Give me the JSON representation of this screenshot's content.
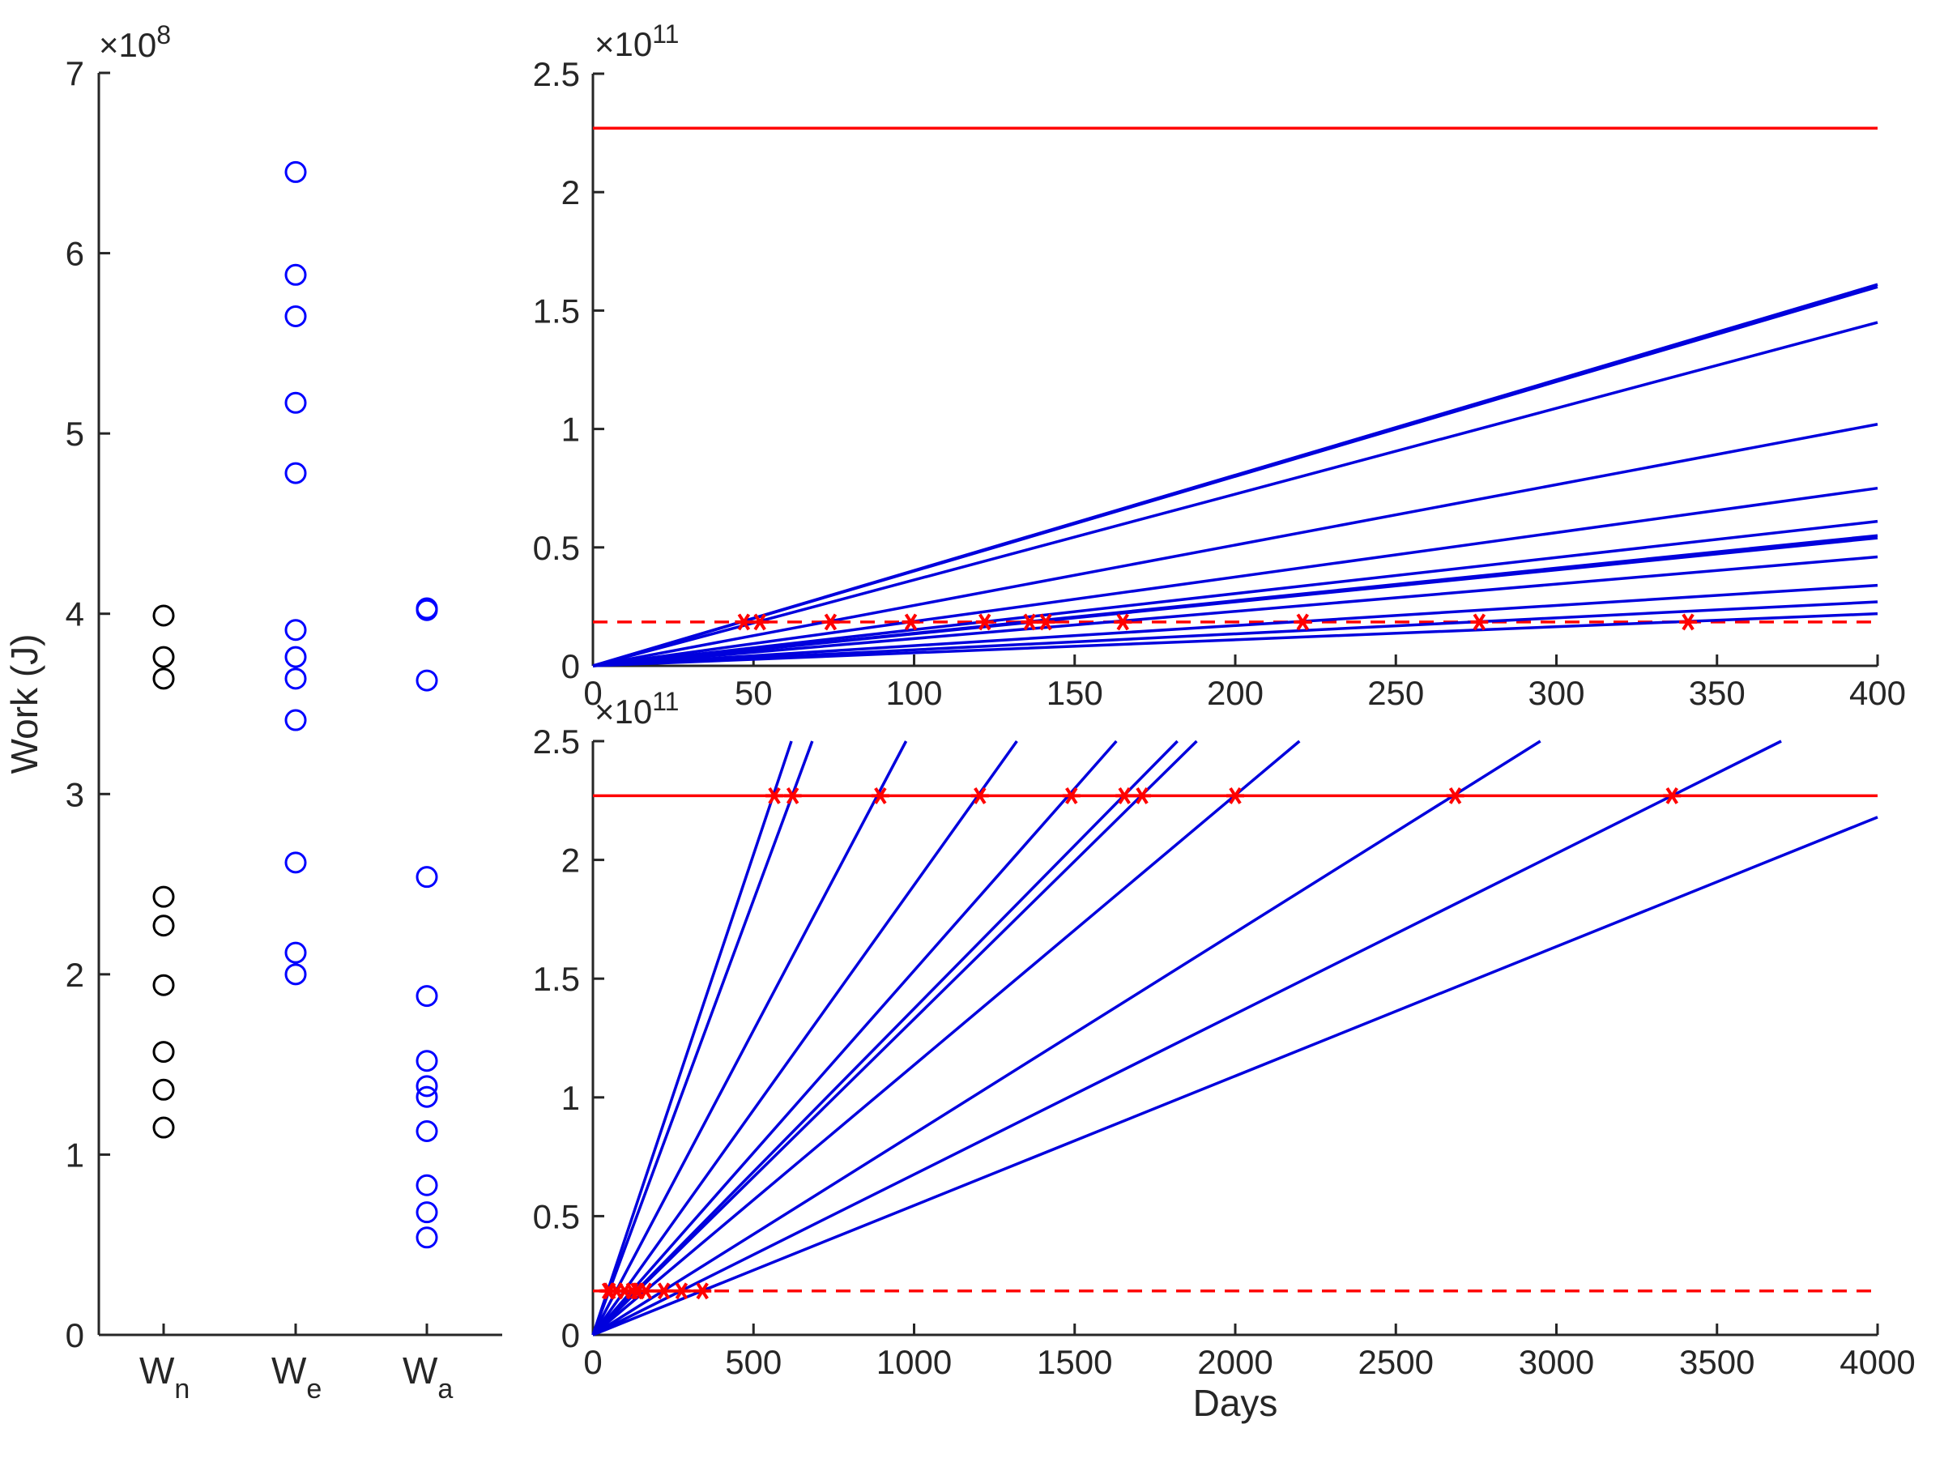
{
  "chart_data": [
    {
      "type": "scatter",
      "ylabel": "Work (J)",
      "ylim": [
        0,
        7
      ],
      "y_exponent_label": "×10",
      "y_exponent_power": "8",
      "yticks": [
        "0",
        "1",
        "2",
        "3",
        "4",
        "5",
        "6",
        "7"
      ],
      "categories": [
        {
          "main": "W",
          "sub": "n"
        },
        {
          "main": "W",
          "sub": "e"
        },
        {
          "main": "W",
          "sub": "a"
        }
      ],
      "series": [
        {
          "name": "W_n",
          "color": "#000000",
          "values": [
            3.99,
            3.76,
            3.64,
            2.43,
            2.27,
            1.94,
            1.57,
            1.36,
            1.15
          ]
        },
        {
          "name": "W_e",
          "color": "#0000ff",
          "values": [
            6.45,
            5.88,
            5.65,
            5.17,
            4.78,
            3.91,
            3.76,
            3.64,
            3.41,
            2.62,
            2.12,
            2.0
          ]
        },
        {
          "name": "W_a",
          "color": "#0000ff",
          "values": [
            4.03,
            4.02,
            3.63,
            2.54,
            1.88,
            1.52,
            1.38,
            1.32,
            1.13,
            0.83,
            0.68,
            0.54
          ]
        }
      ]
    },
    {
      "type": "line",
      "xlim": [
        0,
        400
      ],
      "ylim": [
        0,
        2.5
      ],
      "xticks": [
        "0",
        "50",
        "100",
        "150",
        "200",
        "250",
        "300",
        "350",
        "400"
      ],
      "yticks": [
        "0",
        "0.5",
        "1",
        "1.5",
        "2",
        "2.5"
      ],
      "y_exponent_label": "×10",
      "y_exponent_power": "11",
      "red_solid_level": 2.27,
      "red_dashed_level": 0.185,
      "lines": [
        {
          "end_x": 400,
          "end_y": 1.61
        },
        {
          "end_x": 400,
          "end_y": 1.6
        },
        {
          "end_x": 400,
          "end_y": 1.45
        },
        {
          "end_x": 400,
          "end_y": 1.02
        },
        {
          "end_x": 400,
          "end_y": 0.75
        },
        {
          "end_x": 400,
          "end_y": 0.61
        },
        {
          "end_x": 400,
          "end_y": 0.55
        },
        {
          "end_x": 400,
          "end_y": 0.54
        },
        {
          "end_x": 400,
          "end_y": 0.46
        },
        {
          "end_x": 400,
          "end_y": 0.34
        },
        {
          "end_x": 400,
          "end_y": 0.27
        },
        {
          "end_x": 400,
          "end_y": 0.22
        }
      ],
      "markers_x": [
        47,
        52,
        74,
        99,
        122,
        136,
        141,
        165,
        221,
        276,
        341
      ]
    },
    {
      "type": "line",
      "xlabel": "Days",
      "xlim": [
        0,
        4000
      ],
      "ylim": [
        0,
        2.5
      ],
      "xticks": [
        "0",
        "500",
        "1000",
        "1500",
        "2000",
        "2500",
        "3000",
        "3500",
        "4000"
      ],
      "yticks": [
        "0",
        "0.5",
        "1",
        "1.5",
        "2",
        "2.5"
      ],
      "y_exponent_label": "×10",
      "y_exponent_power": "11",
      "red_solid_level": 2.27,
      "red_dashed_level": 0.185,
      "lines": [
        {
          "end_x": 618,
          "end_y": 2.5
        },
        {
          "end_x": 683,
          "end_y": 2.5
        },
        {
          "end_x": 975,
          "end_y": 2.5
        },
        {
          "end_x": 1320,
          "end_y": 2.5
        },
        {
          "end_x": 1630,
          "end_y": 2.5
        },
        {
          "end_x": 1820,
          "end_y": 2.5
        },
        {
          "end_x": 1880,
          "end_y": 2.5
        },
        {
          "end_x": 2200,
          "end_y": 2.5
        },
        {
          "end_x": 2950,
          "end_y": 2.5
        },
        {
          "end_x": 3700,
          "end_y": 2.5
        },
        {
          "end_x": 4000,
          "end_y": 2.18
        }
      ],
      "markers_high_x": [
        565,
        622,
        895,
        1205,
        1490,
        1655,
        1710,
        2000,
        2685,
        3360
      ],
      "markers_low_x": [
        47,
        52,
        74,
        99,
        122,
        136,
        141,
        165,
        221,
        276,
        341
      ]
    }
  ]
}
